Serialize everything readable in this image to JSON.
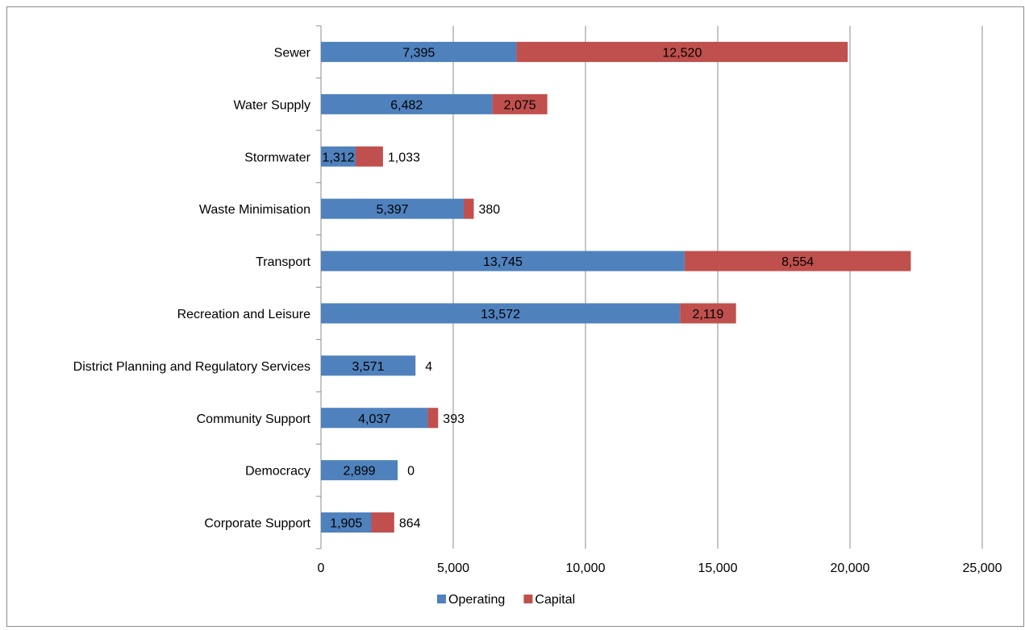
{
  "chart_data": {
    "type": "bar",
    "orientation": "horizontal",
    "stacked": true,
    "title": "",
    "xlabel": "",
    "ylabel": "",
    "categories": [
      "Sewer",
      "Water Supply",
      "Stormwater",
      "Waste Minimisation",
      "Transport",
      "Recreation and Leisure",
      "District Planning and Regulatory Services",
      "Community Support",
      "Democracy",
      "Corporate Support"
    ],
    "series": [
      {
        "name": "Operating",
        "color": "#4f81bd",
        "values": [
          7395,
          6482,
          1312,
          5397,
          13745,
          13572,
          3571,
          4037,
          2899,
          1905
        ],
        "labels": [
          "7,395",
          "6,482",
          "1,312",
          "5,397",
          "13,745",
          "13,572",
          "3,571",
          "4,037",
          "2,899",
          "1,905"
        ]
      },
      {
        "name": "Capital",
        "color": "#c0504d",
        "values": [
          12520,
          2075,
          1033,
          380,
          8554,
          2119,
          4,
          393,
          0,
          864
        ],
        "labels": [
          "12,520",
          "2,075",
          "1,033",
          "380",
          "8,554",
          "2,119",
          "4",
          "393",
          "0",
          "864"
        ]
      }
    ],
    "xlim": [
      0,
      25000
    ],
    "x_ticks": [
      0,
      5000,
      10000,
      15000,
      20000,
      25000
    ],
    "x_tick_labels": [
      "0",
      "5,000",
      "10,000",
      "15,000",
      "20,000",
      "25,000"
    ],
    "grid": "vertical",
    "legend": "bottom"
  }
}
